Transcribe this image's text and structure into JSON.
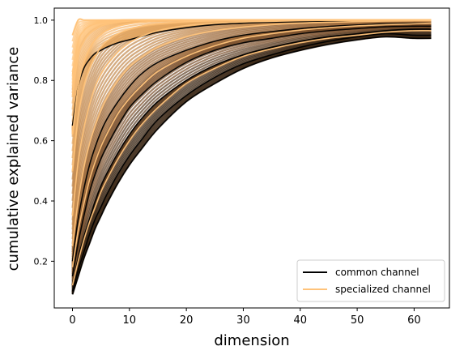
{
  "chart_data": {
    "type": "line",
    "title": "",
    "xlabel": "dimension",
    "ylabel": "cumulative explained variance",
    "xlim": [
      -3.2,
      66.2
    ],
    "ylim": [
      0.045,
      1.04
    ],
    "x_ticks": [
      0,
      10,
      20,
      30,
      40,
      50,
      60
    ],
    "x_tick_labels": [
      "0",
      "10",
      "20",
      "30",
      "40",
      "50",
      "60"
    ],
    "y_ticks": [
      0.2,
      0.4,
      0.6,
      0.8,
      1.0
    ],
    "y_tick_labels": [
      "0.2",
      "0.4",
      "0.6",
      "0.8",
      "1.0"
    ],
    "grid": false,
    "legend_position": "lower-right",
    "x": [
      0,
      1,
      2,
      3,
      4,
      5,
      6,
      8,
      10,
      12,
      15,
      20,
      25,
      30,
      35,
      40,
      45,
      50,
      55,
      60,
      63
    ],
    "series": [
      {
        "name": "common channel",
        "color": "#000000",
        "curves": [
          {
            "values": [
              0.09,
              0.15,
              0.21,
              0.26,
              0.31,
              0.35,
              0.39,
              0.46,
              0.52,
              0.57,
              0.64,
              0.73,
              0.79,
              0.84,
              0.875,
              0.9,
              0.92,
              0.935,
              0.945,
              0.94,
              0.94
            ]
          },
          {
            "values": [
              0.1,
              0.17,
              0.23,
              0.29,
              0.34,
              0.38,
              0.42,
              0.49,
              0.55,
              0.6,
              0.67,
              0.75,
              0.81,
              0.855,
              0.885,
              0.91,
              0.93,
              0.945,
              0.955,
              0.95,
              0.95
            ]
          },
          {
            "values": [
              0.12,
              0.21,
              0.28,
              0.34,
              0.4,
              0.45,
              0.49,
              0.56,
              0.62,
              0.67,
              0.73,
              0.8,
              0.85,
              0.885,
              0.91,
              0.93,
              0.945,
              0.955,
              0.965,
              0.97,
              0.97
            ]
          },
          {
            "values": [
              0.15,
              0.26,
              0.35,
              0.43,
              0.49,
              0.54,
              0.58,
              0.65,
              0.71,
              0.75,
              0.8,
              0.86,
              0.9,
              0.925,
              0.94,
              0.955,
              0.965,
              0.972,
              0.978,
              0.98,
              0.98
            ]
          },
          {
            "values": [
              0.2,
              0.34,
              0.44,
              0.52,
              0.58,
              0.63,
              0.67,
              0.73,
              0.78,
              0.82,
              0.86,
              0.9,
              0.93,
              0.95,
              0.962,
              0.972,
              0.979,
              0.984,
              0.988,
              0.99,
              0.99
            ]
          },
          {
            "values": [
              0.65,
              0.78,
              0.84,
              0.87,
              0.89,
              0.9,
              0.91,
              0.925,
              0.935,
              0.945,
              0.96,
              0.975,
              0.985,
              0.99,
              0.993,
              0.995,
              0.997,
              0.998,
              0.999,
              1.0,
              1.0
            ]
          }
        ]
      },
      {
        "name": "specialized channel",
        "color": "#ffc37a",
        "curves": [
          {
            "values": [
              0.12,
              0.2,
              0.27,
              0.33,
              0.38,
              0.43,
              0.47,
              0.54,
              0.6,
              0.65,
              0.71,
              0.79,
              0.84,
              0.88,
              0.905,
              0.925,
              0.94,
              0.95,
              0.96,
              0.965,
              0.965
            ]
          },
          {
            "values": [
              0.18,
              0.3,
              0.39,
              0.47,
              0.53,
              0.58,
              0.62,
              0.69,
              0.74,
              0.78,
              0.83,
              0.88,
              0.915,
              0.94,
              0.955,
              0.967,
              0.975,
              0.981,
              0.985,
              0.988,
              0.99
            ]
          },
          {
            "values": [
              0.25,
              0.4,
              0.51,
              0.59,
              0.65,
              0.7,
              0.74,
              0.8,
              0.845,
              0.875,
              0.91,
              0.945,
              0.965,
              0.977,
              0.985,
              0.99,
              0.993,
              0.995,
              0.997,
              0.998,
              0.998
            ]
          },
          {
            "values": [
              0.35,
              0.53,
              0.64,
              0.72,
              0.78,
              0.82,
              0.85,
              0.895,
              0.925,
              0.945,
              0.965,
              0.982,
              0.99,
              0.994,
              0.996,
              0.998,
              0.999,
              0.999,
              1.0,
              1.0,
              1.0
            ]
          },
          {
            "values": [
              0.5,
              0.68,
              0.78,
              0.84,
              0.88,
              0.91,
              0.93,
              0.955,
              0.97,
              0.98,
              0.988,
              0.995,
              0.998,
              0.999,
              1.0,
              1.0,
              1.0,
              1.0,
              1.0,
              1.0,
              1.0
            ]
          },
          {
            "values": [
              0.62,
              0.78,
              0.86,
              0.905,
              0.935,
              0.952,
              0.965,
              0.98,
              0.988,
              0.993,
              0.997,
              0.999,
              1.0,
              1.0,
              1.0,
              1.0,
              1.0,
              1.0,
              1.0,
              1.0,
              1.0
            ]
          },
          {
            "values": [
              0.75,
              0.88,
              0.93,
              0.955,
              0.97,
              0.98,
              0.986,
              0.993,
              0.997,
              0.999,
              1.0,
              1.0,
              1.0,
              1.0,
              1.0,
              1.0,
              1.0,
              1.0,
              1.0,
              1.0,
              1.0
            ]
          },
          {
            "values": [
              0.82,
              0.93,
              0.965,
              0.98,
              0.988,
              0.993,
              0.996,
              0.999,
              1.0,
              1.0,
              1.0,
              1.0,
              1.0,
              1.0,
              1.0,
              1.0,
              1.0,
              1.0,
              1.0,
              1.0,
              1.0
            ]
          },
          {
            "values": [
              0.95,
              1.0,
              1.0,
              1.0,
              1.0,
              1.0,
              1.0,
              1.0,
              1.0,
              1.0,
              1.0,
              1.0,
              1.0,
              1.0,
              1.0,
              1.0,
              1.0,
              1.0,
              1.0,
              1.0,
              1.0
            ]
          }
        ]
      }
    ]
  }
}
